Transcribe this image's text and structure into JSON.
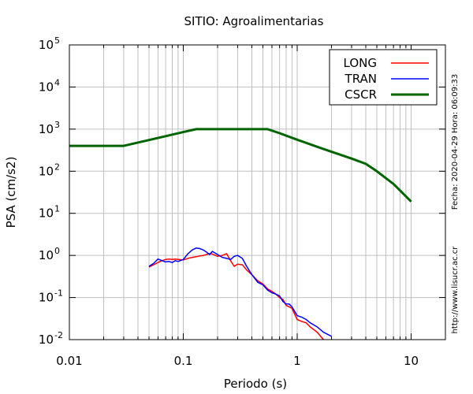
{
  "chart_data": {
    "type": "line",
    "title": "SITIO: Agroalimentarias",
    "xlabel": "Periodo (s)",
    "ylabel": "PSA (cm/s2)",
    "x_scale": "log",
    "y_scale": "log",
    "xlim": [
      0.01,
      20
    ],
    "ylim": [
      0.01,
      100000
    ],
    "x_ticks": [
      {
        "value": 0.01,
        "label": "0.01"
      },
      {
        "value": 0.1,
        "label": "0.1"
      },
      {
        "value": 1,
        "label": "1"
      },
      {
        "value": 10,
        "label": "10"
      }
    ],
    "y_ticks": [
      {
        "value": 0.01,
        "base": "10",
        "exp": "-2"
      },
      {
        "value": 0.1,
        "base": "10",
        "exp": "-1"
      },
      {
        "value": 1,
        "base": "10",
        "exp": "0"
      },
      {
        "value": 10,
        "base": "10",
        "exp": "1"
      },
      {
        "value": 100,
        "base": "10",
        "exp": "2"
      },
      {
        "value": 1000,
        "base": "10",
        "exp": "3"
      },
      {
        "value": 10000,
        "base": "10",
        "exp": "4"
      },
      {
        "value": 100000,
        "base": "10",
        "exp": "5"
      }
    ],
    "grid": true,
    "legend_position": "top-right",
    "series": [
      {
        "name": "LONG",
        "color": "#ff0000",
        "x": [
          0.05,
          0.055,
          0.06,
          0.065,
          0.07,
          0.075,
          0.08,
          0.085,
          0.09,
          0.1,
          0.11,
          0.12,
          0.13,
          0.14,
          0.15,
          0.16,
          0.17,
          0.18,
          0.2,
          0.22,
          0.24,
          0.26,
          0.28,
          0.3,
          0.33,
          0.36,
          0.4,
          0.45,
          0.5,
          0.55,
          0.6,
          0.65,
          0.7,
          0.75,
          0.8,
          0.85,
          0.9,
          1.0,
          1.1,
          1.2,
          1.3,
          1.5,
          1.7
        ],
        "y": [
          0.53,
          0.6,
          0.68,
          0.75,
          0.8,
          0.82,
          0.8,
          0.82,
          0.8,
          0.78,
          0.85,
          0.9,
          0.93,
          0.97,
          1.0,
          1.05,
          1.1,
          1.08,
          0.95,
          1.0,
          1.1,
          0.75,
          0.55,
          0.62,
          0.6,
          0.45,
          0.35,
          0.25,
          0.21,
          0.16,
          0.14,
          0.12,
          0.1,
          0.09,
          0.065,
          0.06,
          0.055,
          0.03,
          0.027,
          0.025,
          0.02,
          0.015,
          0.01
        ]
      },
      {
        "name": "TRAN",
        "color": "#0000ff",
        "x": [
          0.05,
          0.055,
          0.06,
          0.065,
          0.07,
          0.075,
          0.08,
          0.085,
          0.09,
          0.1,
          0.11,
          0.12,
          0.13,
          0.14,
          0.15,
          0.16,
          0.17,
          0.18,
          0.2,
          0.22,
          0.24,
          0.26,
          0.28,
          0.3,
          0.33,
          0.36,
          0.4,
          0.45,
          0.5,
          0.55,
          0.6,
          0.65,
          0.7,
          0.75,
          0.8,
          0.85,
          0.9,
          1.0,
          1.1,
          1.2,
          1.3,
          1.5,
          1.7,
          2.0
        ],
        "y": [
          0.55,
          0.65,
          0.82,
          0.75,
          0.7,
          0.72,
          0.68,
          0.75,
          0.72,
          0.8,
          1.1,
          1.35,
          1.5,
          1.45,
          1.35,
          1.2,
          1.05,
          1.25,
          1.05,
          0.9,
          0.85,
          0.8,
          0.95,
          1.0,
          0.85,
          0.55,
          0.35,
          0.23,
          0.2,
          0.15,
          0.13,
          0.12,
          0.11,
          0.08,
          0.07,
          0.07,
          0.06,
          0.037,
          0.034,
          0.03,
          0.025,
          0.02,
          0.015,
          0.012
        ]
      },
      {
        "name": "CSCR",
        "color": "#006400",
        "x": [
          0.01,
          0.03,
          0.05,
          0.07,
          0.1,
          0.13,
          0.2,
          0.3,
          0.55,
          0.7,
          1.0,
          1.5,
          2.0,
          3.0,
          4.0,
          5.0,
          7.0,
          10.0
        ],
        "y": [
          400,
          400,
          550,
          680,
          850,
          1000,
          1000,
          1000,
          1000,
          800,
          560,
          380,
          290,
          200,
          150,
          100,
          50,
          19
        ]
      }
    ],
    "side_notes": {
      "timestamp": "Fecha: 2020-04-29 Hora: 06:09:33",
      "url": "http://www.lisucr.ac.cr"
    }
  }
}
